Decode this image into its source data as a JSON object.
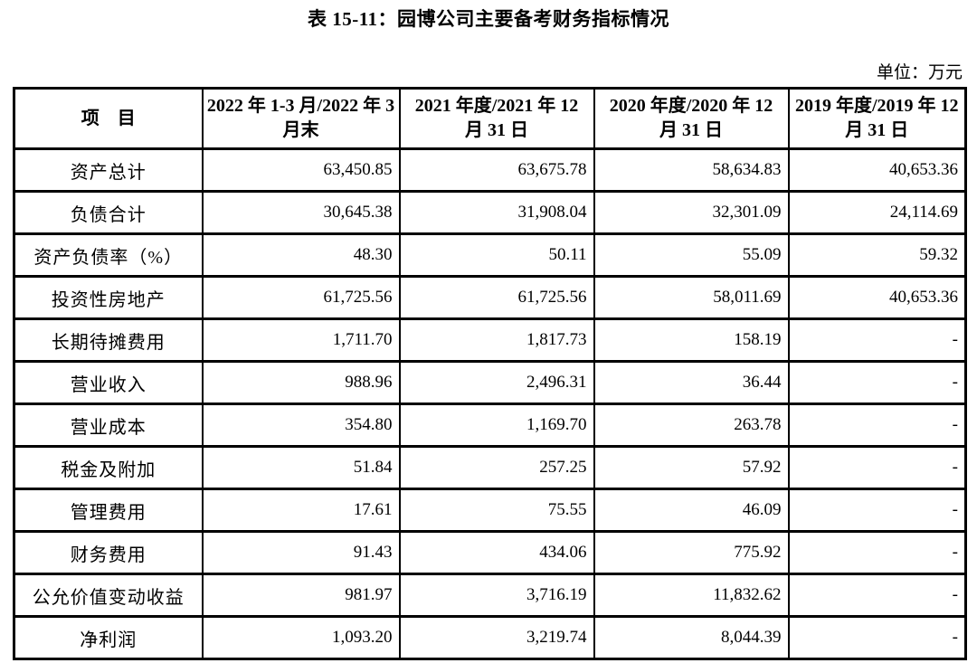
{
  "title": "表 15-11：园博公司主要备考财务指标情况",
  "unit_label": "单位：万元",
  "table": {
    "header": [
      "项　目",
      "2022 年 1-3 月/2022 年 3 月末",
      "2021 年度/2021 年 12 月 31 日",
      "2020 年度/2020 年 12 月 31 日",
      "2019 年度/2019 年 12 月 31 日"
    ],
    "rows": [
      {
        "label": "资产总计",
        "values": [
          "63,450.85",
          "63,675.78",
          "58,634.83",
          "40,653.36"
        ]
      },
      {
        "label": "负债合计",
        "values": [
          "30,645.38",
          "31,908.04",
          "32,301.09",
          "24,114.69"
        ]
      },
      {
        "label": "资产负债率（%）",
        "values": [
          "48.30",
          "50.11",
          "55.09",
          "59.32"
        ]
      },
      {
        "label": "投资性房地产",
        "values": [
          "61,725.56",
          "61,725.56",
          "58,011.69",
          "40,653.36"
        ]
      },
      {
        "label": "长期待摊费用",
        "values": [
          "1,711.70",
          "1,817.73",
          "158.19",
          "-"
        ]
      },
      {
        "label": "营业收入",
        "values": [
          "988.96",
          "2,496.31",
          "36.44",
          "-"
        ]
      },
      {
        "label": "营业成本",
        "values": [
          "354.80",
          "1,169.70",
          "263.78",
          "-"
        ]
      },
      {
        "label": "税金及附加",
        "values": [
          "51.84",
          "257.25",
          "57.92",
          "-"
        ]
      },
      {
        "label": "管理费用",
        "values": [
          "17.61",
          "75.55",
          "46.09",
          "-"
        ]
      },
      {
        "label": "财务费用",
        "values": [
          "91.43",
          "434.06",
          "775.92",
          "-"
        ]
      },
      {
        "label": "公允价值变动收益",
        "values": [
          "981.97",
          "3,716.19",
          "11,832.62",
          "-"
        ]
      },
      {
        "label": "净利润",
        "values": [
          "1,093.20",
          "3,219.74",
          "8,044.39",
          "-"
        ]
      }
    ]
  }
}
